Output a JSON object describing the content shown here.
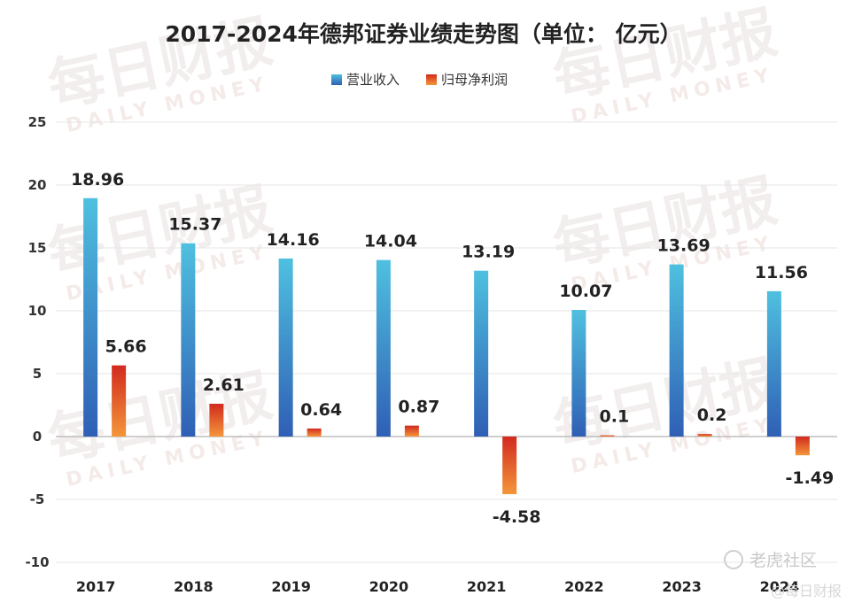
{
  "chart_data": {
    "type": "bar",
    "title": "2017-2024年德邦证券业绩走势图（单位： 亿元）",
    "categories": [
      "2017",
      "2018",
      "2019",
      "2020",
      "2021",
      "2022",
      "2023",
      "2024"
    ],
    "series": [
      {
        "name": "营业收入",
        "values": [
          18.96,
          15.37,
          14.16,
          14.04,
          13.19,
          10.07,
          13.69,
          11.56
        ]
      },
      {
        "name": "归母净利润",
        "values": [
          5.66,
          2.61,
          0.64,
          0.87,
          -4.58,
          0.1,
          0.2,
          -1.49
        ]
      }
    ],
    "data_labels": [
      [
        "18.96",
        "15.37",
        "14.16",
        "14.04",
        "13.19",
        "10.07",
        "13.69",
        "11.56"
      ],
      [
        "5.66",
        "2.61",
        "0.64",
        "0.87",
        "-4.58",
        "0.1",
        "0.2",
        "-1.49"
      ]
    ],
    "y_ticks": [
      "25",
      "20",
      "15",
      "10",
      "5",
      "0",
      "-5",
      "-10"
    ],
    "ylim": [
      -10,
      25
    ],
    "grid": true,
    "legend_position": "top-center"
  },
  "colors": {
    "revenue_top": "#4fc0df",
    "revenue_bottom": "#2f5fb5",
    "profit_top": "#d12a1f",
    "profit_bottom": "#f4963a",
    "grid": "#e6e6e6",
    "axis": "#bdbdbd"
  },
  "watermark": {
    "text": "每日财报",
    "sub": "DAILY MONEY"
  },
  "corner_marks": {
    "community": "老虎社区",
    "source": "@每日财报"
  }
}
